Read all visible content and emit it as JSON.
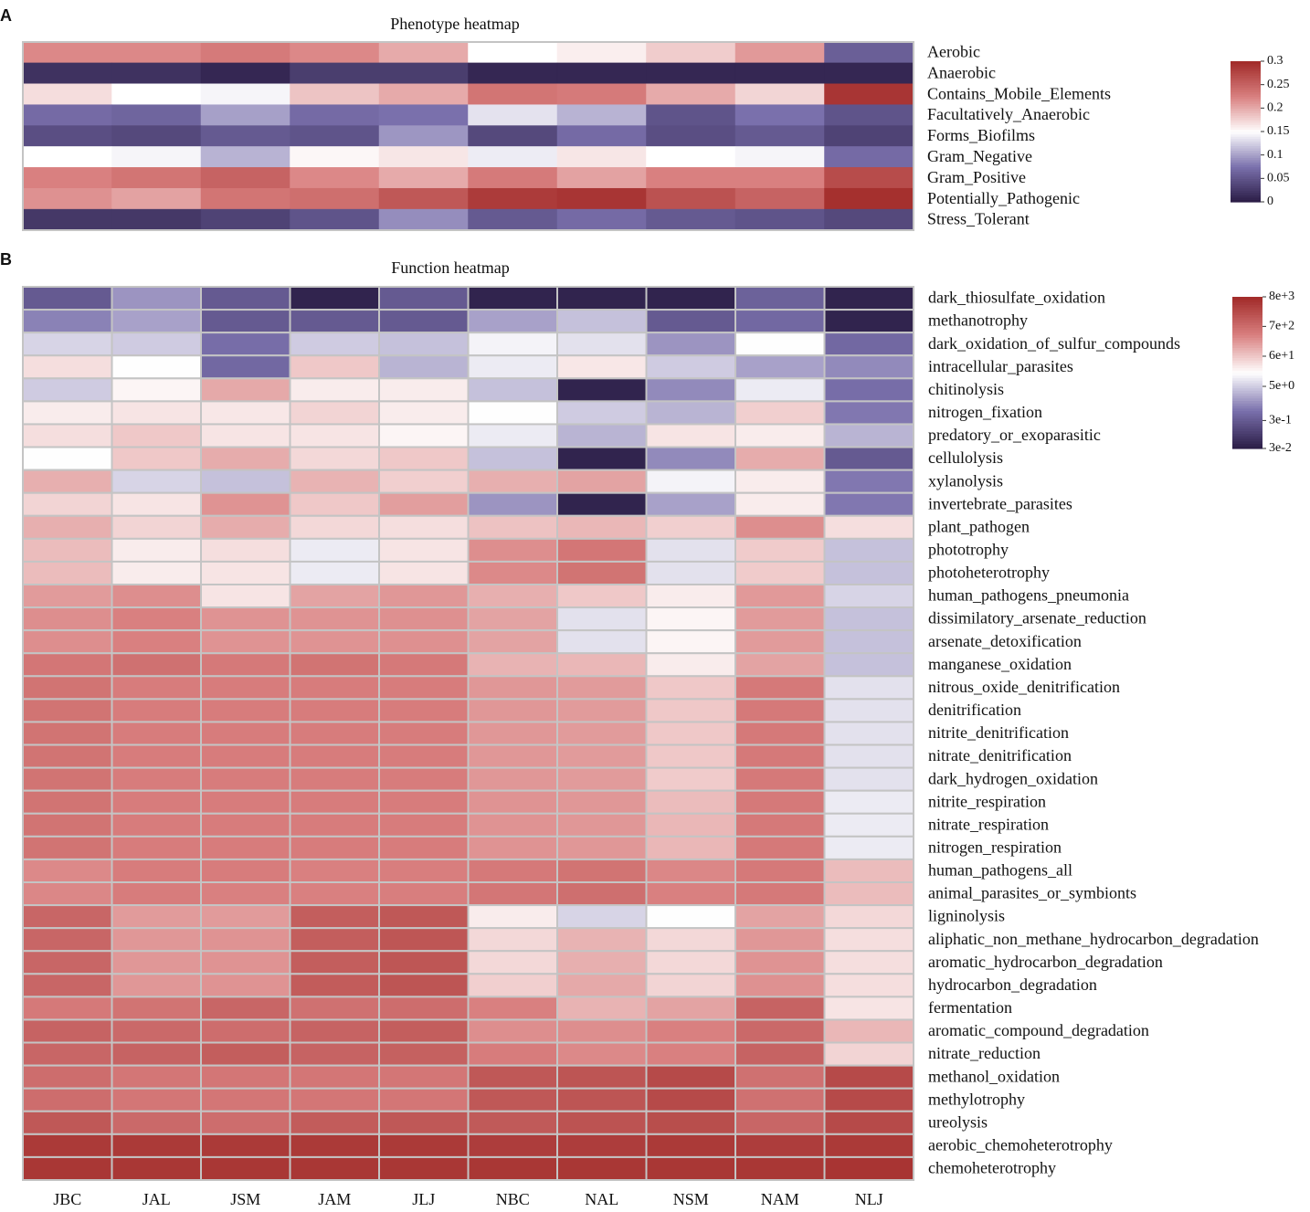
{
  "chart_data": [
    {
      "type": "heatmap",
      "panel_label": "A",
      "title": "Phenotype heatmap",
      "rows": [
        "Aerobic",
        "Anaerobic",
        "Contains_Mobile_Elements",
        "Facultatively_Anaerobic",
        "Forms_Biofilms",
        "Gram_Negative",
        "Gram_Positive",
        "Potentially_Pathogenic",
        "Stress_Tolerant"
      ],
      "values": [
        [
          0.22,
          0.22,
          0.23,
          0.22,
          0.2,
          0.15,
          0.16,
          0.18,
          0.21,
          0.06
        ],
        [
          0.02,
          0.02,
          0.01,
          0.03,
          0.03,
          0.01,
          0.01,
          0.01,
          0.01,
          0.01
        ],
        [
          0.17,
          0.15,
          0.145,
          0.185,
          0.2,
          0.235,
          0.23,
          0.2,
          0.175,
          0.29
        ],
        [
          0.07,
          0.065,
          0.1,
          0.07,
          0.075,
          0.135,
          0.11,
          0.05,
          0.075,
          0.05
        ],
        [
          0.045,
          0.04,
          0.055,
          0.05,
          0.095,
          0.04,
          0.07,
          0.045,
          0.055,
          0.035
        ],
        [
          0.15,
          0.145,
          0.11,
          0.155,
          0.165,
          0.14,
          0.165,
          0.15,
          0.145,
          0.07
        ],
        [
          0.225,
          0.235,
          0.25,
          0.22,
          0.2,
          0.23,
          0.205,
          0.225,
          0.225,
          0.27
        ],
        [
          0.215,
          0.205,
          0.235,
          0.24,
          0.26,
          0.285,
          0.29,
          0.265,
          0.25,
          0.295
        ],
        [
          0.025,
          0.025,
          0.035,
          0.05,
          0.09,
          0.055,
          0.07,
          0.055,
          0.05,
          0.04
        ]
      ],
      "zlim": [
        0,
        0.3
      ],
      "zticks": [
        0,
        0.05,
        0.1,
        0.15,
        0.2,
        0.25,
        0.3
      ],
      "log_scale": false,
      "cell_borders": false,
      "colormap": [
        "#2a1c45",
        "#7a70ac",
        "#ffffff",
        "#d98080",
        "#a12a28"
      ]
    },
    {
      "type": "heatmap",
      "panel_label": "B",
      "title": "Function heatmap",
      "columns": [
        "JBC",
        "JAL",
        "JSM",
        "JAM",
        "JLJ",
        "NBC",
        "NAL",
        "NSM",
        "NAM",
        "NLJ"
      ],
      "rows": [
        "dark_thiosulfate_oxidation",
        "methanotrophy",
        "dark_oxidation_of_sulfur_compounds",
        "intracellular_parasites",
        "chitinolysis",
        "nitrogen_fixation",
        "predatory_or_exoparasitic",
        "cellulolysis",
        "xylanolysis",
        "invertebrate_parasites",
        "plant_pathogen",
        "phototrophy",
        "photoheterotrophy",
        "human_pathogens_pneumonia",
        "dissimilatory_arsenate_reduction",
        "arsenate_detoxification",
        "manganese_oxidation",
        "nitrous_oxide_denitrification",
        "denitrification",
        "nitrite_denitrification",
        "nitrate_denitrification",
        "dark_hydrogen_oxidation",
        "nitrite_respiration",
        "nitrate_respiration",
        "nitrogen_respiration",
        "human_pathogens_all",
        "animal_parasites_or_symbionts",
        "ligninolysis",
        "aliphatic_non_methane_hydrocarbon_degradation",
        "aromatic_hydrocarbon_degradation",
        "hydrocarbon_degradation",
        "fermentation",
        "aromatic_compound_degradation",
        "nitrate_reduction",
        "methanol_oxidation",
        "methylotrophy",
        "ureolysis",
        "aerobic_chemoheterotrophy",
        "chemoheterotrophy"
      ],
      "values": [
        [
          0.3,
          1.5,
          0.3,
          0.04,
          0.3,
          0.04,
          0.04,
          0.04,
          0.4,
          0.04
        ],
        [
          1,
          2,
          0.3,
          0.3,
          0.3,
          2,
          4,
          0.3,
          0.5,
          0.04
        ],
        [
          6,
          5,
          0.6,
          5,
          4,
          12,
          8,
          1.5,
          15,
          0.5
        ],
        [
          35,
          15,
          0.5,
          60,
          3,
          10,
          28,
          5,
          2,
          1.2
        ],
        [
          5,
          20,
          130,
          25,
          25,
          4,
          0.04,
          1.2,
          10,
          0.6
        ],
        [
          25,
          30,
          28,
          45,
          25,
          15,
          5,
          3,
          50,
          0.8
        ],
        [
          35,
          60,
          30,
          30,
          20,
          10,
          3,
          30,
          25,
          3
        ],
        [
          15,
          60,
          120,
          40,
          60,
          4,
          0.04,
          1.2,
          120,
          0.3
        ],
        [
          110,
          6,
          4,
          100,
          50,
          110,
          150,
          12,
          25,
          0.8
        ],
        [
          45,
          30,
          220,
          60,
          170,
          1.5,
          0.04,
          2,
          25,
          0.8
        ],
        [
          110,
          45,
          120,
          40,
          35,
          70,
          90,
          50,
          250,
          35
        ],
        [
          80,
          25,
          35,
          10,
          30,
          250,
          500,
          8,
          55,
          4
        ],
        [
          80,
          25,
          30,
          10,
          30,
          280,
          550,
          8,
          55,
          4
        ],
        [
          180,
          250,
          30,
          150,
          200,
          110,
          60,
          25,
          190,
          6
        ],
        [
          250,
          350,
          220,
          220,
          240,
          150,
          8,
          20,
          180,
          4
        ],
        [
          250,
          350,
          220,
          220,
          240,
          150,
          8,
          20,
          180,
          4
        ],
        [
          500,
          600,
          450,
          550,
          450,
          100,
          90,
          25,
          150,
          4
        ],
        [
          550,
          400,
          400,
          400,
          400,
          200,
          180,
          60,
          450,
          8
        ],
        [
          550,
          400,
          400,
          400,
          400,
          200,
          180,
          60,
          450,
          8
        ],
        [
          550,
          400,
          400,
          400,
          400,
          200,
          180,
          60,
          450,
          8
        ],
        [
          550,
          400,
          400,
          400,
          400,
          200,
          180,
          60,
          450,
          8
        ],
        [
          550,
          400,
          400,
          400,
          400,
          200,
          180,
          55,
          450,
          8
        ],
        [
          550,
          400,
          400,
          400,
          400,
          220,
          200,
          80,
          450,
          10
        ],
        [
          550,
          400,
          400,
          400,
          400,
          220,
          200,
          90,
          450,
          10
        ],
        [
          550,
          400,
          400,
          400,
          400,
          220,
          200,
          90,
          450,
          10
        ],
        [
          280,
          400,
          400,
          350,
          380,
          450,
          550,
          300,
          450,
          80
        ],
        [
          300,
          400,
          350,
          350,
          380,
          500,
          650,
          350,
          450,
          80
        ],
        [
          900,
          180,
          180,
          1200,
          1500,
          25,
          6,
          15,
          150,
          40
        ],
        [
          900,
          200,
          220,
          1200,
          1600,
          40,
          100,
          40,
          200,
          35
        ],
        [
          900,
          200,
          220,
          1200,
          1600,
          40,
          110,
          40,
          220,
          35
        ],
        [
          900,
          200,
          220,
          1300,
          1700,
          50,
          130,
          45,
          230,
          35
        ],
        [
          450,
          550,
          900,
          600,
          700,
          350,
          100,
          150,
          1000,
          30
        ],
        [
          1000,
          800,
          700,
          1000,
          1200,
          250,
          250,
          350,
          800,
          90
        ],
        [
          900,
          1000,
          1200,
          1000,
          1100,
          400,
          280,
          350,
          1000,
          45
        ],
        [
          700,
          500,
          500,
          500,
          500,
          1500,
          1700,
          2500,
          600,
          2500
        ],
        [
          700,
          500,
          500,
          500,
          500,
          1500,
          1700,
          2500,
          600,
          2500
        ],
        [
          1500,
          800,
          700,
          1300,
          1500,
          1400,
          1800,
          2200,
          900,
          2500
        ],
        [
          4500,
          4500,
          4500,
          4500,
          4500,
          4000,
          4000,
          4500,
          4000,
          4500
        ],
        [
          5000,
          5000,
          5000,
          5000,
          5000,
          5000,
          5000,
          5000,
          5000,
          5500
        ]
      ],
      "zlim": [
        0.03,
        8000
      ],
      "zticks": [
        {
          "value": 0.03,
          "label": "3e-2"
        },
        {
          "value": 0.3,
          "label": "3e-1"
        },
        {
          "value": 5,
          "label": "5e+0"
        },
        {
          "value": 60,
          "label": "6e+1"
        },
        {
          "value": 700,
          "label": "7e+2"
        },
        {
          "value": 8000,
          "label": "8e+3"
        }
      ],
      "log_scale": true,
      "cell_borders": true,
      "colormap": [
        "#2a1c45",
        "#7a70ac",
        "#ffffff",
        "#d98080",
        "#a12a28"
      ]
    }
  ]
}
